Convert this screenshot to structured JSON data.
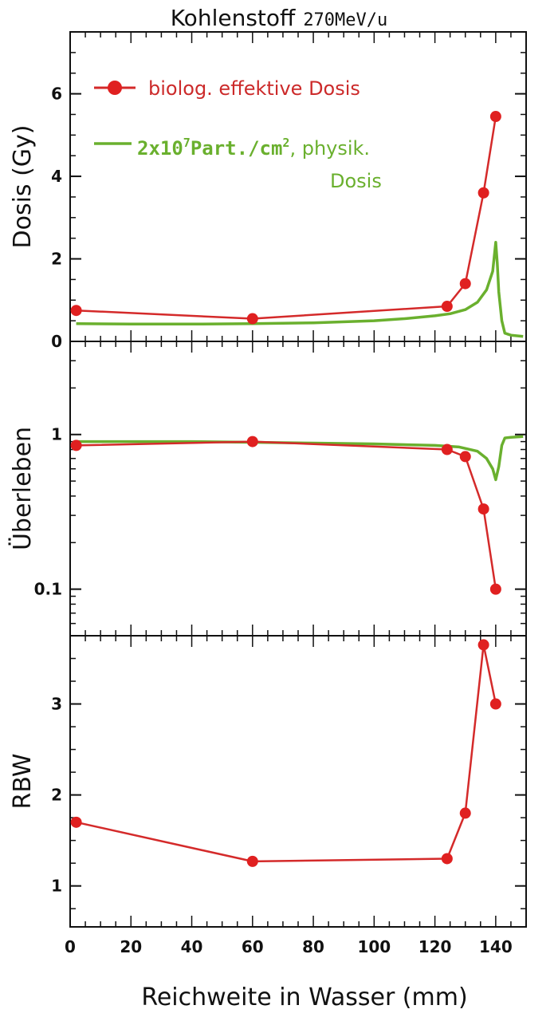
{
  "title": "Kohlenstoff",
  "title_suffix": "270MeV/u",
  "chart_data": [
    {
      "type": "line",
      "panel": "top",
      "ylabel": "Dosis (Gy)",
      "ylim": [
        0,
        7.5
      ],
      "yticks": [
        0,
        2,
        4,
        6
      ],
      "xlim": [
        0,
        150
      ],
      "legend_placement": "top-left",
      "legend": {
        "red": "biolog. effektive Dosis",
        "green_part1": "2x10",
        "green_sup": "7",
        "green_part2": "Part./cm",
        "green_sup2": "2",
        "green_part3": ",  physik.",
        "green_line2": "Dosis"
      },
      "series": [
        {
          "name": "biolog. effektive Dosis",
          "color": "#d42a2a",
          "marker": "circle",
          "x": [
            2,
            60,
            124,
            130,
            136,
            140
          ],
          "y": [
            0.75,
            0.55,
            0.85,
            1.4,
            3.6,
            5.45
          ]
        },
        {
          "name": "physik. Dosis",
          "color": "#6ab02e",
          "marker": "none",
          "x": [
            2,
            20,
            40,
            60,
            80,
            100,
            110,
            120,
            125,
            130,
            134,
            137,
            139,
            140,
            140.5,
            141,
            142,
            143,
            145,
            149
          ],
          "y": [
            0.43,
            0.42,
            0.42,
            0.43,
            0.45,
            0.5,
            0.55,
            0.62,
            0.67,
            0.77,
            0.95,
            1.25,
            1.7,
            2.4,
            1.9,
            1.2,
            0.5,
            0.2,
            0.15,
            0.12
          ]
        }
      ]
    },
    {
      "type": "line",
      "panel": "middle",
      "ylabel": "Überleben",
      "yscale": "log",
      "ylim": [
        0.05,
        4
      ],
      "yticks": [
        0.1,
        1
      ],
      "ytick_labels": [
        "0.1",
        "1"
      ],
      "xlim": [
        0,
        150
      ],
      "series": [
        {
          "name": "biolog. effektive Dosis",
          "color": "#d42a2a",
          "marker": "circle",
          "x": [
            2,
            60,
            124,
            130,
            136,
            140
          ],
          "y": [
            0.85,
            0.9,
            0.8,
            0.72,
            0.33,
            0.1
          ]
        },
        {
          "name": "physik. Dosis",
          "color": "#6ab02e",
          "marker": "none",
          "x": [
            2,
            20,
            40,
            60,
            80,
            100,
            120,
            128,
            134,
            137,
            139,
            140,
            141,
            142,
            143,
            145,
            149
          ],
          "y": [
            0.9,
            0.9,
            0.9,
            0.89,
            0.88,
            0.87,
            0.85,
            0.83,
            0.78,
            0.7,
            0.6,
            0.51,
            0.62,
            0.85,
            0.95,
            0.96,
            0.97
          ]
        }
      ]
    },
    {
      "type": "line",
      "panel": "bottom",
      "ylabel": "RBW",
      "ylim": [
        0.55,
        3.75
      ],
      "yticks": [
        1,
        2,
        3
      ],
      "xlim": [
        0,
        150
      ],
      "xticks": [
        0,
        20,
        40,
        60,
        80,
        100,
        120,
        140
      ],
      "xlabel": "Reichweite in Wasser (mm)",
      "series": [
        {
          "name": "RBW",
          "color": "#d42a2a",
          "marker": "circle",
          "x": [
            2,
            60,
            124,
            130,
            136,
            140
          ],
          "y": [
            1.7,
            1.27,
            1.3,
            1.8,
            3.65,
            3.0
          ]
        }
      ]
    }
  ]
}
